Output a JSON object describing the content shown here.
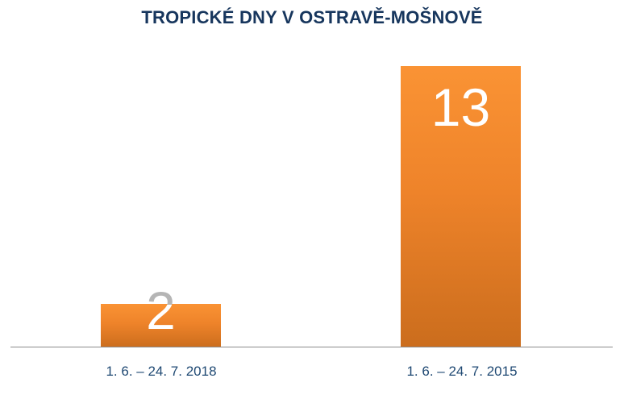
{
  "chart_data": {
    "type": "bar",
    "title": "TROPICKÉ DNY V OSTRAVĚ-MOŠNOVĚ",
    "categories": [
      "1. 6. – 24. 7. 2018",
      "1. 6. – 24. 7. 2015"
    ],
    "values": [
      2,
      13
    ],
    "xlabel": "",
    "ylabel": "",
    "ylim": [
      0,
      14
    ],
    "grid": false,
    "legend": false,
    "y_axis_visible": false,
    "data_labels": {
      "position": "inside-end",
      "values": [
        "2",
        "13"
      ]
    },
    "colors": {
      "bar_gradient_top": "#FA9334",
      "bar_gradient_bottom": "#CB6D1D",
      "title": "#17365D",
      "category_label": "#1F4973",
      "axis_line": "#8C8C8C",
      "data_label_inside_bar": "#FFFFFF",
      "data_label_above_bar": "#B5B5B5"
    }
  }
}
